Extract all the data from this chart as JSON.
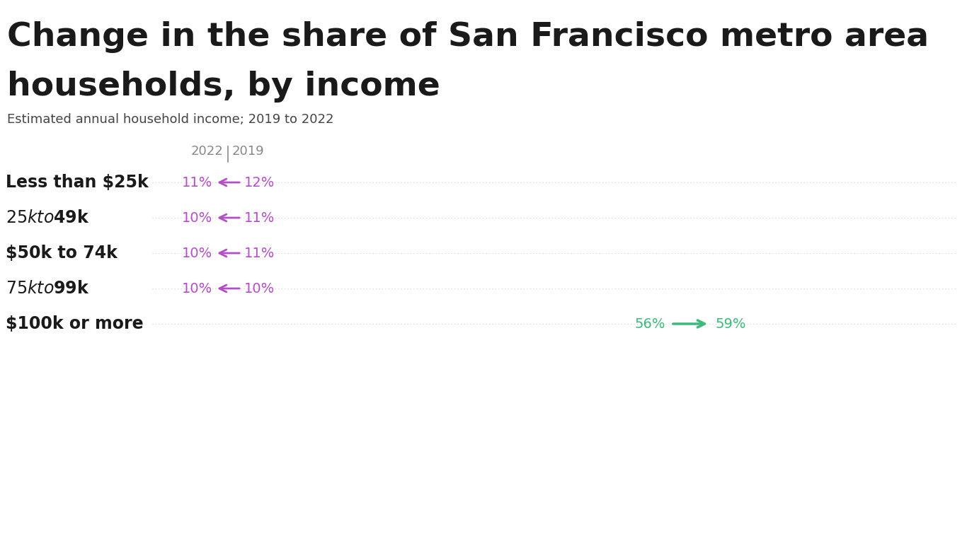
{
  "title_line1": "Change in the share of San Francisco metro area",
  "title_line2": "households, by income",
  "subtitle": "Estimated annual household income; 2019 to 2022",
  "background_color": "#ffffff",
  "title_color": "#1a1a1a",
  "subtitle_color": "#444444",
  "label_color": "#1a1a1a",
  "dotted_line_color": "#cccccc",
  "purple_color": "#b44dc8",
  "green_color": "#3dba7a",
  "legend_color": "#888888",
  "categories": [
    "Less than $25k",
    "$25k to $49k",
    "$50k to 74k",
    "$75k to $99k",
    "$100k or more"
  ],
  "val_2022": [
    11,
    10,
    10,
    10,
    56
  ],
  "val_2019": [
    12,
    11,
    11,
    10,
    59
  ],
  "direction": [
    "left",
    "left",
    "left",
    "left",
    "right"
  ]
}
